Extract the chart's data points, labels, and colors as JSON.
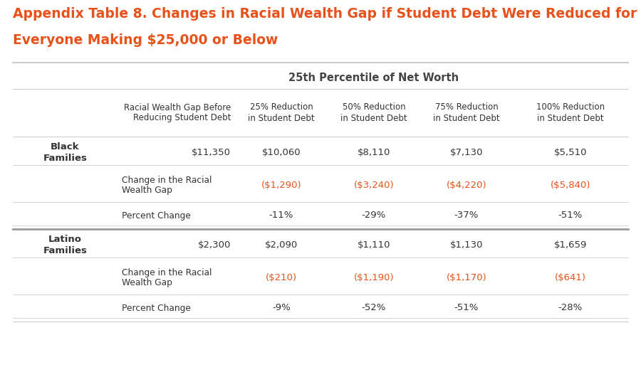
{
  "title_line1": "Appendix Table 8. Changes in Racial Wealth Gap if Student Debt Were Reduced for",
  "title_line2": "Everyone Making $25,000 or Below",
  "title_color": "#E8521A",
  "subtitle": "25th Percentile of Net Worth",
  "col_headers": [
    "Racial Wealth Gap Before\nReducing Student Debt",
    "25% Reduction\nin Student Debt",
    "50% Reduction\nin Student Debt",
    "75% Reduction\nin Student Debt",
    "100% Reduction\nin Student Debt"
  ],
  "black_label": "Black\nFamilies",
  "latino_label": "Latino\nFamilies",
  "black_row1": [
    "$11,350",
    "$10,060",
    "$8,110",
    "$7,130",
    "$5,510"
  ],
  "black_row2_label": "Change in the Racial\nWealth Gap",
  "black_row2": [
    "",
    "($1,290)",
    "($3,240)",
    "($4,220)",
    "($5,840)"
  ],
  "black_row3_label": "Percent Change",
  "black_row3": [
    "",
    "-11%",
    "-29%",
    "-37%",
    "-51%"
  ],
  "latino_row1": [
    "$2,300",
    "$2,090",
    "$1,110",
    "$1,130",
    "$1,659"
  ],
  "latino_row2_label": "Change in the Racial\nWealth Gap",
  "latino_row2": [
    "",
    "($210)",
    "($1,190)",
    "($1,170)",
    "($641)"
  ],
  "latino_row3_label": "Percent Change",
  "latino_row3": [
    "",
    "-9%",
    "-52%",
    "-51%",
    "-28%"
  ],
  "orange_color": "#E8521A",
  "dark_text": "#333333",
  "light_gray": "#cccccc",
  "medium_gray": "#999999",
  "bg_color": "#ffffff"
}
